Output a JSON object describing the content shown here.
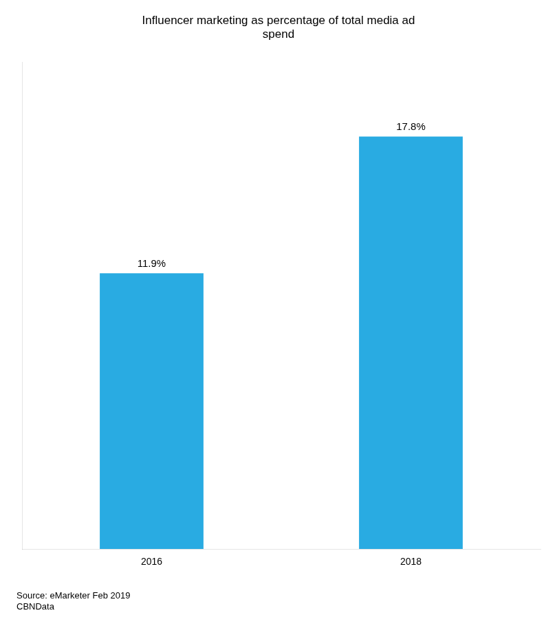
{
  "chart_data": {
    "type": "bar",
    "title": "Influencer marketing as percentage of total media ad\nspend",
    "categories": [
      "2016",
      "2018"
    ],
    "values": [
      11.9,
      17.8
    ],
    "value_labels": [
      "11.9%",
      "17.8%"
    ],
    "data_labels": true,
    "color": "#29ABE2",
    "ylim": [
      0,
      21
    ],
    "tick_labels": "x",
    "grid": false,
    "annotations": [
      "Source: eMarketer Feb 2019\nCBNData"
    ]
  }
}
